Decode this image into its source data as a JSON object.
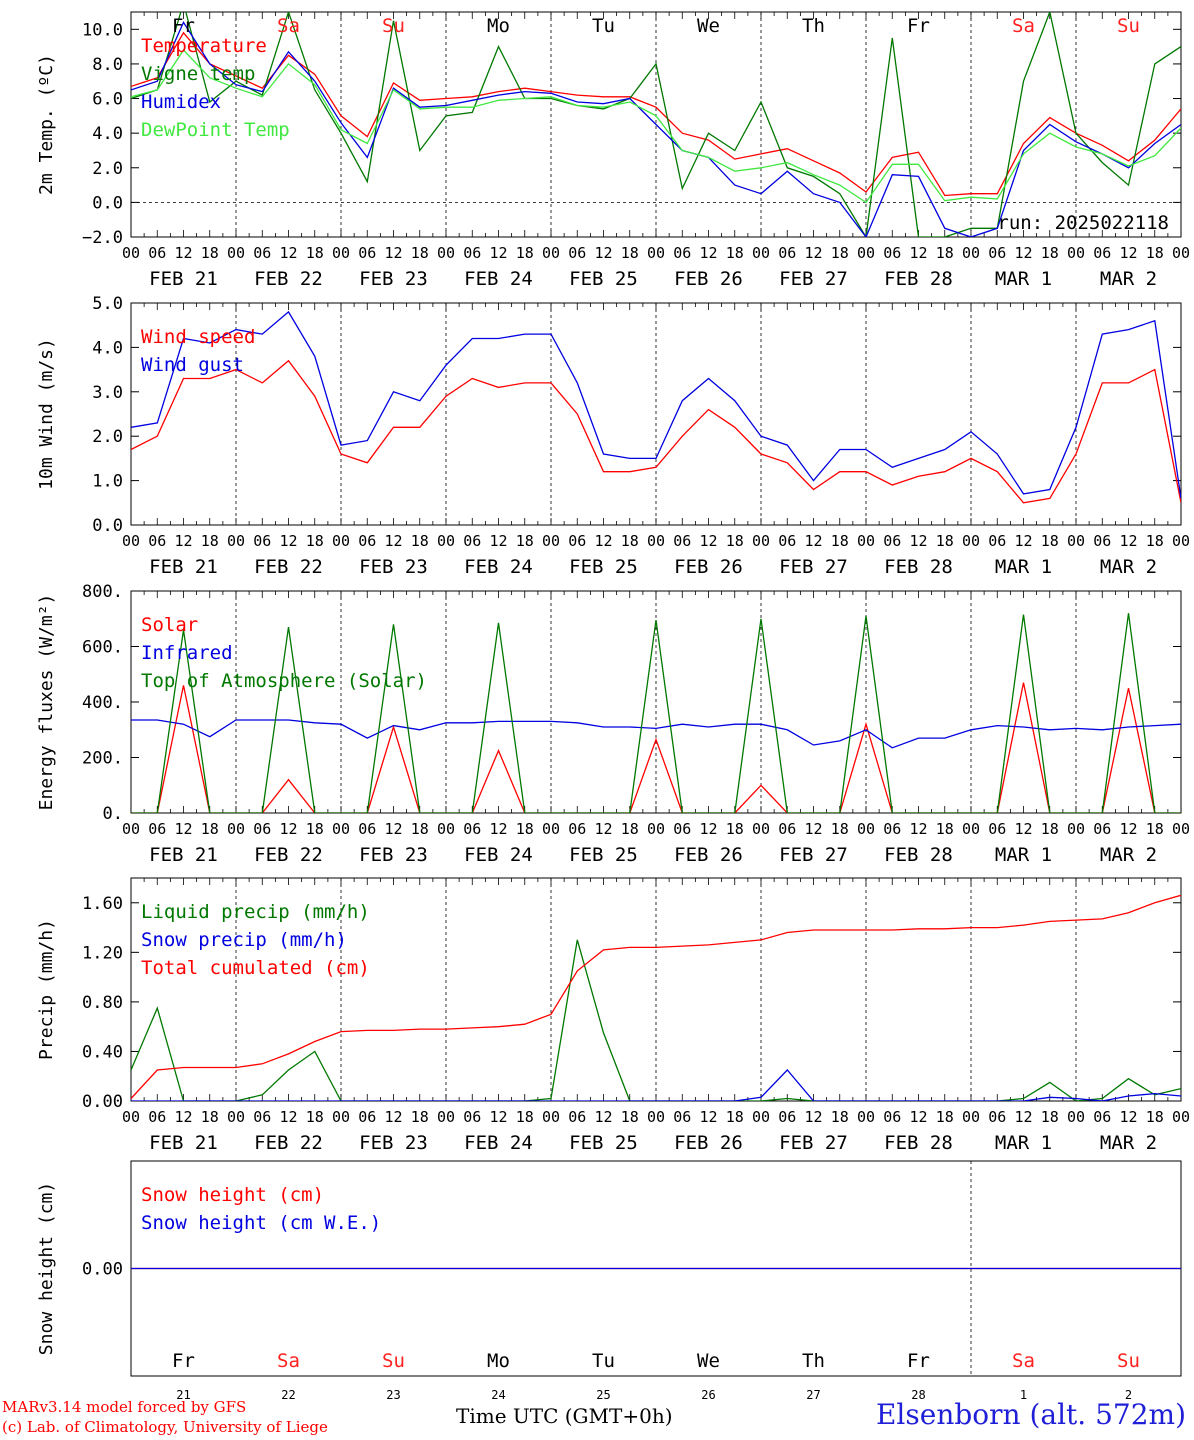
{
  "page": {
    "footer_credit_1": "MARv3.14 model forced by GFS",
    "footer_credit_2": "(c) Lab. of Climatology, University of Liege",
    "time_label": "Time UTC (GMT+0h)",
    "station": "Elsenborn (alt. 572m)"
  },
  "day_names": [
    "Fr",
    "Sa",
    "Su",
    "Mo",
    "Tu",
    "We",
    "Th",
    "Fr",
    "Sa",
    "Su"
  ],
  "weekend_color": "#ff2020",
  "weekday_color": "#000000",
  "weekend_flags": [
    false,
    true,
    true,
    false,
    false,
    false,
    false,
    false,
    true,
    true
  ],
  "date_labels": [
    "FEB 21",
    "FEB 22",
    "FEB 23",
    "FEB 24",
    "FEB 25",
    "FEB 26",
    "FEB 27",
    "FEB 28",
    "MAR  1",
    "MAR  2"
  ],
  "hour_labels": [
    "00",
    "06",
    "12",
    "18"
  ],
  "day_numbers": [
    "21",
    "22",
    "23",
    "24",
    "25",
    "26",
    "27",
    "28",
    "1",
    "2"
  ],
  "chart_data": [
    {
      "type": "line",
      "ylabel": "2m Temp. (ºC)",
      "ylim": [
        -2,
        11
      ],
      "yticks": [
        "−2.0",
        "0.0",
        "2.0",
        "4.0",
        "6.0",
        "8.0",
        "10.0"
      ],
      "ytick_values": [
        -2,
        0,
        2,
        4,
        6,
        8,
        10
      ],
      "annotation": "run: 2025022118",
      "x_hours": [
        0,
        6,
        12,
        18,
        24,
        30,
        36,
        42,
        48,
        54,
        60,
        66,
        72,
        78,
        84,
        90,
        96,
        102,
        108,
        114,
        120,
        126,
        132,
        138,
        144,
        150,
        156,
        162,
        168,
        174,
        180,
        186,
        192,
        198,
        204,
        210,
        216,
        222,
        228,
        234,
        240
      ],
      "series": [
        {
          "name": "Temperature",
          "color": "#ff0000",
          "values": [
            6.7,
            7.2,
            9.8,
            8.0,
            7.3,
            6.6,
            8.5,
            7.4,
            5.0,
            3.8,
            6.9,
            5.9,
            6.0,
            6.1,
            6.4,
            6.6,
            6.4,
            6.2,
            6.1,
            6.1,
            5.5,
            4.0,
            3.6,
            2.5,
            2.8,
            3.1,
            2.4,
            1.7,
            0.6,
            2.6,
            2.9,
            0.4,
            0.5,
            0.5,
            3.4,
            4.9,
            4.0,
            3.3,
            2.4,
            3.6,
            5.4
          ]
        },
        {
          "name": "Vigne temp",
          "color": "#007800",
          "values": [
            6.0,
            6.5,
            11.5,
            5.8,
            7.0,
            6.2,
            11.0,
            6.5,
            4.0,
            1.2,
            10.5,
            3.0,
            5.0,
            5.2,
            9.0,
            6.0,
            6.0,
            5.6,
            5.4,
            6.0,
            8.0,
            0.8,
            4.0,
            3.0,
            5.8,
            2.0,
            1.5,
            0.5,
            -2.0,
            9.5,
            -2.0,
            -2.0,
            -1.5,
            -1.5,
            7.0,
            11.0,
            4.0,
            2.3,
            1.0,
            8.0,
            9.0
          ]
        },
        {
          "name": "Humidex",
          "color": "#0000e0",
          "values": [
            6.5,
            7.0,
            10.4,
            8.0,
            6.8,
            6.4,
            8.7,
            7.0,
            4.6,
            2.6,
            6.6,
            5.5,
            5.6,
            5.9,
            6.2,
            6.4,
            6.3,
            5.8,
            5.7,
            6.0,
            4.5,
            3.0,
            2.6,
            1.0,
            0.5,
            1.8,
            0.5,
            0.0,
            -2.0,
            1.6,
            1.5,
            -1.5,
            -2.0,
            -1.5,
            3.0,
            4.5,
            3.5,
            2.8,
            2.0,
            3.4,
            4.5
          ]
        },
        {
          "name": "DewPoint Temp",
          "color": "#40e840",
          "values": [
            6.1,
            6.5,
            8.8,
            7.2,
            6.6,
            6.1,
            8.0,
            6.8,
            4.2,
            3.4,
            6.5,
            5.4,
            5.5,
            5.5,
            5.9,
            6.0,
            6.1,
            5.6,
            5.5,
            5.8,
            5.0,
            3.0,
            2.6,
            1.8,
            2.0,
            2.3,
            1.6,
            1.0,
            0.0,
            2.2,
            2.2,
            0.1,
            0.3,
            0.2,
            2.8,
            4.0,
            3.2,
            2.8,
            2.1,
            2.7,
            4.3
          ]
        }
      ]
    },
    {
      "type": "line",
      "ylabel": "10m Wind (m/s)",
      "ylim": [
        0,
        5.0
      ],
      "yticks": [
        "0.0",
        "1.0",
        "2.0",
        "3.0",
        "4.0",
        "5.0"
      ],
      "ytick_values": [
        0,
        1,
        2,
        3,
        4,
        5
      ],
      "x_hours": [
        0,
        6,
        12,
        18,
        24,
        30,
        36,
        42,
        48,
        54,
        60,
        66,
        72,
        78,
        84,
        90,
        96,
        102,
        108,
        114,
        120,
        126,
        132,
        138,
        144,
        150,
        156,
        162,
        168,
        174,
        180,
        186,
        192,
        198,
        204,
        210,
        216,
        222,
        228,
        234,
        240
      ],
      "series": [
        {
          "name": "Wind speed",
          "color": "#ff0000",
          "values": [
            1.7,
            2.0,
            3.3,
            3.3,
            3.5,
            3.2,
            3.7,
            2.9,
            1.6,
            1.4,
            2.2,
            2.2,
            2.9,
            3.3,
            3.1,
            3.2,
            3.2,
            2.5,
            1.2,
            1.2,
            1.3,
            2.0,
            2.6,
            2.2,
            1.6,
            1.4,
            0.8,
            1.2,
            1.2,
            0.9,
            1.1,
            1.2,
            1.5,
            1.2,
            0.5,
            0.6,
            1.6,
            3.2,
            3.2,
            3.5,
            0.5
          ]
        },
        {
          "name": "Wind gust",
          "color": "#0000e0",
          "values": [
            2.2,
            2.3,
            4.2,
            4.1,
            4.4,
            4.3,
            4.8,
            3.8,
            1.8,
            1.9,
            3.0,
            2.8,
            3.6,
            4.2,
            4.2,
            4.3,
            4.3,
            3.2,
            1.6,
            1.5,
            1.5,
            2.8,
            3.3,
            2.8,
            2.0,
            1.8,
            1.0,
            1.7,
            1.7,
            1.3,
            1.5,
            1.7,
            2.1,
            1.6,
            0.7,
            0.8,
            2.2,
            4.3,
            4.4,
            4.6,
            0.6
          ]
        }
      ]
    },
    {
      "type": "line",
      "ylabel": "Energy fluxes (W/m²)",
      "ylim": [
        0,
        800
      ],
      "yticks": [
        "0.",
        "200.",
        "400.",
        "600.",
        "800."
      ],
      "ytick_values": [
        0,
        200,
        400,
        600,
        800
      ],
      "x_hours": [
        0,
        6,
        12,
        18,
        24,
        30,
        36,
        42,
        48,
        54,
        60,
        66,
        72,
        78,
        84,
        90,
        96,
        102,
        108,
        114,
        120,
        126,
        132,
        138,
        144,
        150,
        156,
        162,
        168,
        174,
        180,
        186,
        192,
        198,
        204,
        210,
        216,
        222,
        228,
        234,
        240
      ],
      "series": [
        {
          "name": "Solar",
          "color": "#ff0000",
          "values": [
            0,
            0,
            460,
            0,
            0,
            0,
            120,
            0,
            0,
            0,
            310,
            0,
            0,
            0,
            225,
            0,
            0,
            0,
            0,
            0,
            265,
            0,
            0,
            0,
            100,
            0,
            0,
            0,
            320,
            0,
            0,
            0,
            0,
            0,
            470,
            0,
            0,
            0,
            450,
            0,
            0
          ]
        },
        {
          "name": "Infrared",
          "color": "#0000e0",
          "values": [
            335,
            335,
            320,
            275,
            335,
            335,
            335,
            325,
            320,
            270,
            315,
            300,
            325,
            325,
            330,
            330,
            330,
            325,
            310,
            310,
            305,
            320,
            310,
            320,
            320,
            300,
            245,
            260,
            300,
            235,
            270,
            270,
            300,
            315,
            310,
            300,
            305,
            300,
            310,
            315,
            320
          ]
        },
        {
          "name": "Top of Atmosphere (Solar)",
          "color": "#007800",
          "values": [
            0,
            0,
            660,
            0,
            0,
            0,
            670,
            0,
            0,
            0,
            680,
            0,
            0,
            0,
            685,
            0,
            0,
            0,
            0,
            0,
            695,
            0,
            0,
            0,
            700,
            0,
            0,
            0,
            710,
            0,
            0,
            0,
            0,
            0,
            715,
            0,
            0,
            0,
            720,
            0,
            0
          ]
        }
      ]
    },
    {
      "type": "line",
      "ylabel": "Precip (mm/h)",
      "ylim": [
        0,
        1.8
      ],
      "yticks": [
        "0.00",
        "0.40",
        "0.80",
        "1.20",
        "1.60"
      ],
      "ytick_values": [
        0,
        0.4,
        0.8,
        1.2,
        1.6
      ],
      "x_hours": [
        0,
        6,
        12,
        18,
        24,
        30,
        36,
        42,
        48,
        54,
        60,
        66,
        72,
        78,
        84,
        90,
        96,
        102,
        108,
        114,
        120,
        126,
        132,
        138,
        144,
        150,
        156,
        162,
        168,
        174,
        180,
        186,
        192,
        198,
        204,
        210,
        216,
        222,
        228,
        234,
        240
      ],
      "series": [
        {
          "name": "Liquid precip (mm/h)",
          "color": "#007800",
          "values": [
            0.25,
            0.75,
            0.0,
            0.0,
            0.0,
            0.05,
            0.25,
            0.4,
            0.0,
            0.0,
            0.0,
            0.0,
            0.0,
            0.0,
            0.0,
            0.0,
            0.02,
            1.3,
            0.55,
            0.0,
            0.0,
            0.0,
            0.0,
            0.0,
            0.0,
            0.02,
            0.0,
            0.0,
            0.0,
            0.0,
            0.0,
            0.0,
            0.0,
            0.0,
            0.02,
            0.15,
            0.0,
            0.02,
            0.18,
            0.05,
            0.1
          ]
        },
        {
          "name": "Snow precip (mm/h)",
          "color": "#0000e0",
          "values": [
            0,
            0,
            0,
            0,
            0,
            0,
            0,
            0,
            0,
            0,
            0,
            0,
            0,
            0,
            0,
            0,
            0,
            0,
            0,
            0,
            0,
            0,
            0,
            0,
            0.03,
            0.25,
            0.0,
            0.0,
            0.0,
            0.0,
            0.0,
            0.0,
            0.0,
            0.0,
            0.0,
            0.03,
            0.02,
            0.0,
            0.04,
            0.06,
            0.04
          ]
        },
        {
          "name": "Total cumulated (cm)",
          "color": "#ff0000",
          "values": [
            0.02,
            0.25,
            0.27,
            0.27,
            0.27,
            0.3,
            0.38,
            0.48,
            0.56,
            0.57,
            0.57,
            0.58,
            0.58,
            0.59,
            0.6,
            0.62,
            0.7,
            1.05,
            1.22,
            1.24,
            1.24,
            1.25,
            1.26,
            1.28,
            1.3,
            1.36,
            1.38,
            1.38,
            1.38,
            1.38,
            1.39,
            1.39,
            1.4,
            1.4,
            1.42,
            1.45,
            1.46,
            1.47,
            1.52,
            1.6,
            1.66
          ]
        }
      ]
    },
    {
      "type": "line",
      "ylabel": "Snow height (cm)",
      "ylim": [
        -1,
        1
      ],
      "yticks": [
        "0.00"
      ],
      "ytick_values": [
        0
      ],
      "x_hours": [
        0,
        240
      ],
      "series": [
        {
          "name": "Snow height (cm)",
          "color": "#ff0000",
          "values": [
            0,
            0
          ]
        },
        {
          "name": "Snow height (cm W.E.)",
          "color": "#0000e0",
          "values": [
            0,
            0
          ]
        }
      ]
    }
  ]
}
